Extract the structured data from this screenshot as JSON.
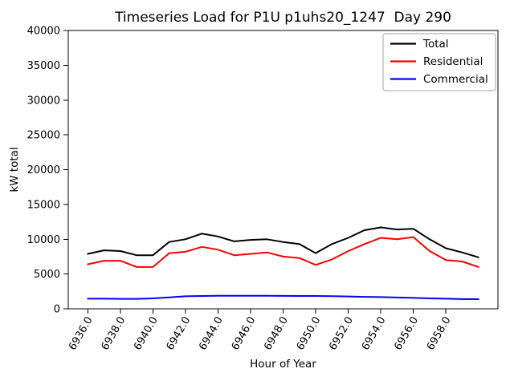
{
  "window": {
    "title": "Timeseries Load for P1U p1uhs20_1247  Day 290"
  },
  "chart_data": {
    "type": "line",
    "title": "Timeseries Load for P1U p1uhs20_1247  Day 290",
    "xlabel": "Hour of Year",
    "ylabel": "kW total",
    "xlim": [
      6934.8,
      6961.2
    ],
    "ylim": [
      0,
      40000
    ],
    "grid": false,
    "x": [
      6936,
      6937,
      6938,
      6939,
      6940,
      6941,
      6942,
      6943,
      6944,
      6945,
      6946,
      6947,
      6948,
      6949,
      6950,
      6951,
      6952,
      6953,
      6954,
      6955,
      6956,
      6957,
      6958,
      6959,
      6960
    ],
    "series": [
      {
        "name": "Total",
        "color": "#000000",
        "values": [
          7900,
          8400,
          8300,
          7700,
          7700,
          9600,
          10000,
          10800,
          10400,
          9700,
          9900,
          10000,
          9600,
          9300,
          8000,
          9300,
          10200,
          11300,
          11700,
          11400,
          11500,
          10000,
          8700,
          8100,
          7400
        ]
      },
      {
        "name": "Residential",
        "color": "#ff0000",
        "values": [
          6400,
          6900,
          6900,
          6000,
          6000,
          8000,
          8200,
          8900,
          8500,
          7700,
          7900,
          8100,
          7500,
          7300,
          6300,
          7100,
          8300,
          9300,
          10200,
          10000,
          10300,
          8300,
          7000,
          6800,
          6000
        ]
      },
      {
        "name": "Commercial",
        "color": "#0000ff",
        "values": [
          1450,
          1450,
          1430,
          1430,
          1500,
          1650,
          1800,
          1850,
          1880,
          1880,
          1880,
          1870,
          1860,
          1850,
          1850,
          1820,
          1780,
          1720,
          1680,
          1620,
          1570,
          1500,
          1450,
          1400,
          1380
        ]
      }
    ],
    "xticks": {
      "values": [
        6936,
        6938,
        6940,
        6942,
        6944,
        6946,
        6948,
        6950,
        6952,
        6954,
        6956,
        6958
      ],
      "labels": [
        "6936.0",
        "6938.0",
        "6940.0",
        "6942.0",
        "6944.0",
        "6946.0",
        "6948.0",
        "6950.0",
        "6952.0",
        "6954.0",
        "6956.0",
        "6958.0"
      ],
      "rotation": -60
    },
    "yticks": {
      "values": [
        0,
        5000,
        10000,
        15000,
        20000,
        25000,
        30000,
        35000,
        40000
      ],
      "labels": [
        "0",
        "5000",
        "10000",
        "15000",
        "20000",
        "25000",
        "30000",
        "35000",
        "40000"
      ]
    },
    "legend": {
      "position": "upper right",
      "entries": [
        {
          "label": "Total",
          "color": "#000000"
        },
        {
          "label": "Residential",
          "color": "#ff0000"
        },
        {
          "label": "Commercial",
          "color": "#0000ff"
        }
      ]
    }
  },
  "colors": {
    "background": "#ffffff",
    "axis": "#000000",
    "legend_border": "#b3b3b3"
  }
}
